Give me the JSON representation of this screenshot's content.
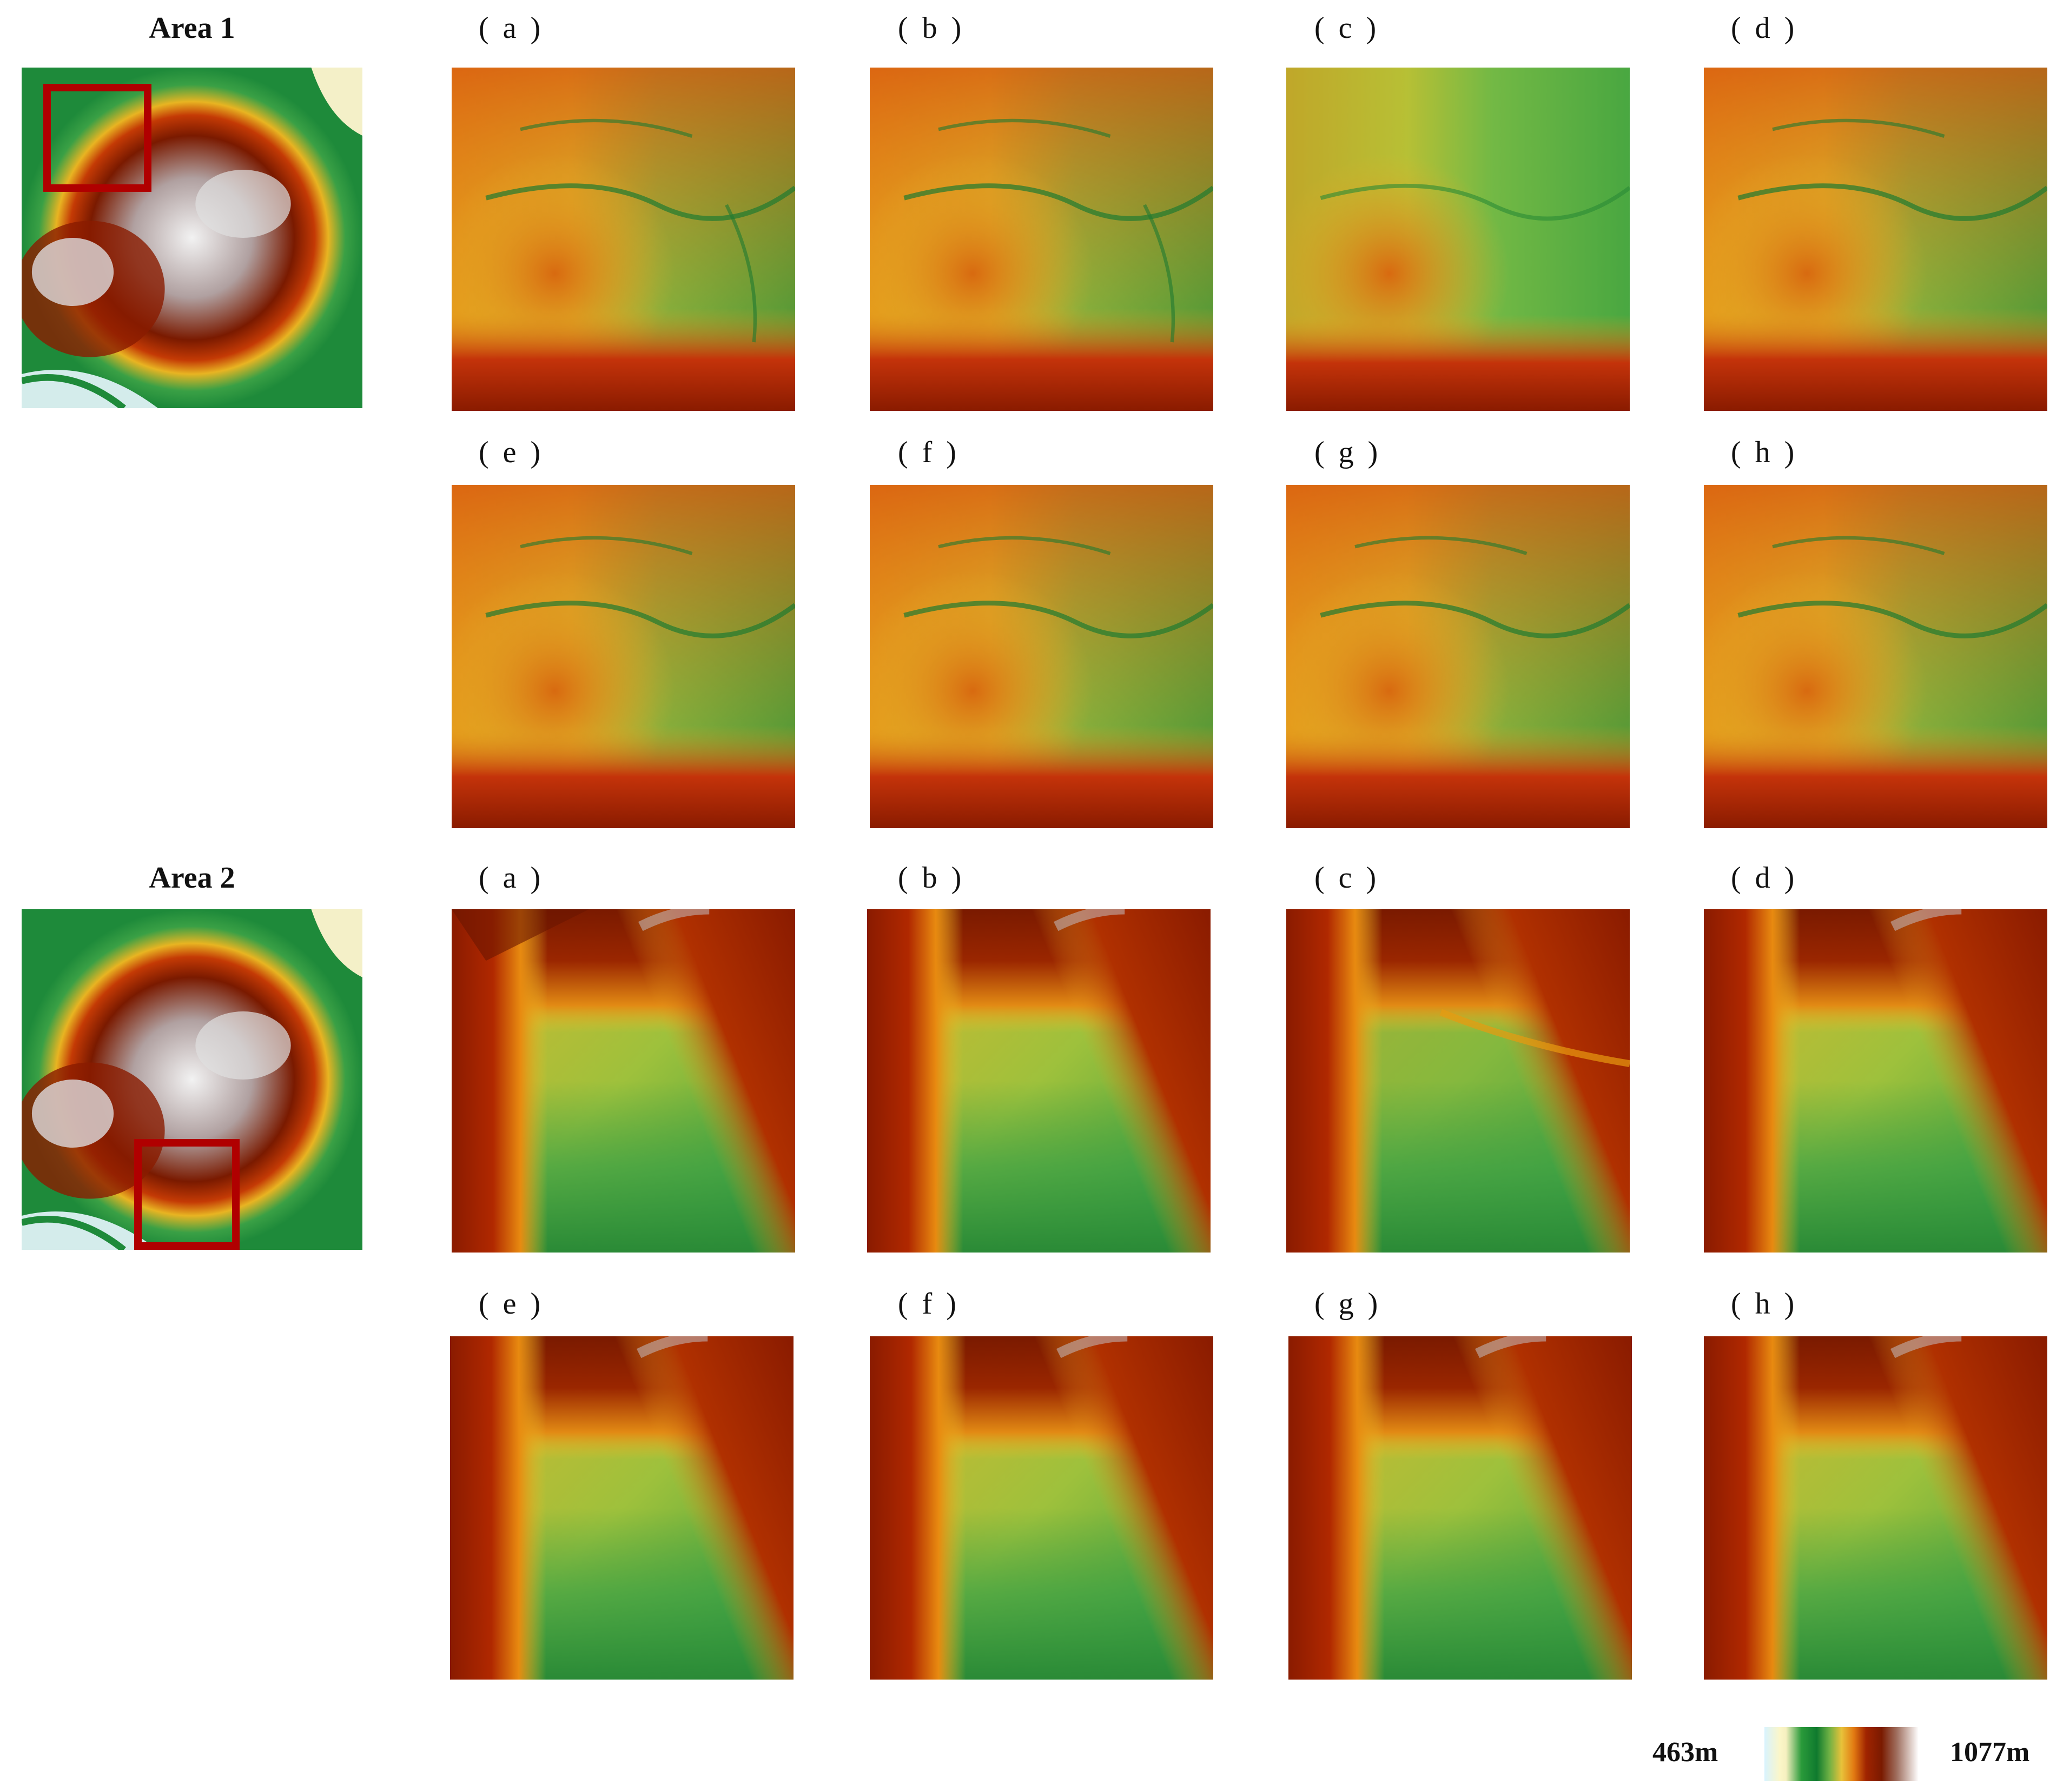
{
  "areas": [
    {
      "title": "Area 1",
      "panels": [
        "( a )",
        "( b )",
        "( c )",
        "( d )",
        "( e )",
        "( f )",
        "( g )",
        "( h )"
      ]
    },
    {
      "title": "Area 2",
      "panels": [
        "( a )",
        "( b )",
        "( c )",
        "( d )",
        "( e )",
        "( f )",
        "( g )",
        "( h )"
      ]
    }
  ],
  "legend": {
    "min": "463m",
    "max": "1077m",
    "colors": [
      "#d8f3ff",
      "#fbf6c8",
      "#2a9a3a",
      "#0f7a2e",
      "#e8c23a",
      "#e27a12",
      "#7a1a00",
      "#ffffff"
    ]
  },
  "colors": {
    "highlight_box": "#b00000"
  }
}
